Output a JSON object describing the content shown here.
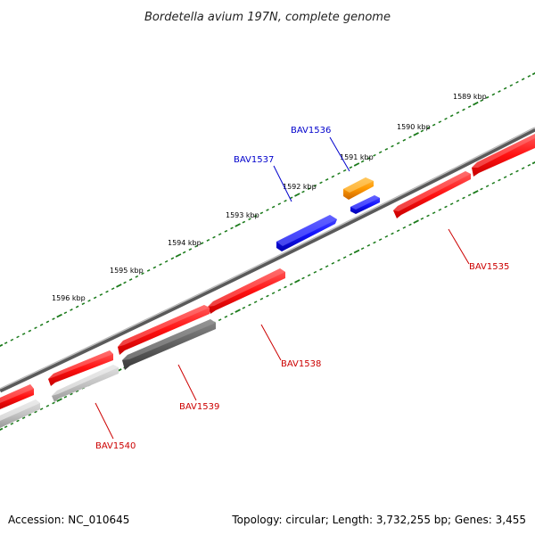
{
  "title": "Bordetella avium 197N, complete genome",
  "footer": {
    "accession": "Accession: NC_010645",
    "summary": "Topology: circular; Length: 3,732,255 bp; Genes: 3,455"
  },
  "ruler": {
    "labels": [
      "1589 kbp",
      "1590 kbp",
      "1591 kbp",
      "1592 kbp",
      "1593 kbp",
      "1594 kbp",
      "1595 kbp",
      "1596 kbp"
    ]
  },
  "genes": [
    {
      "id": "BAV1535",
      "strand": "minus",
      "color": "#ff1a1a"
    },
    {
      "id": "BAV1536",
      "strand": "plus",
      "color": "#1a1aff"
    },
    {
      "id": "BAV1537",
      "strand": "plus",
      "color": "#1a1aff"
    },
    {
      "id": "BAV1538",
      "strand": "minus",
      "color": "#ff1a1a"
    },
    {
      "id": "BAV1539",
      "strand": "minus",
      "color": "#ff1a1a"
    },
    {
      "id": "BAV1540",
      "strand": "minus",
      "color": "#ff1a1a"
    }
  ],
  "colors": {
    "forward_gene": "#1a1aff",
    "reverse_gene": "#ff1a1a",
    "orange_feature": "#ff9900",
    "backbone": "#808080",
    "tick": "#1a7a1a"
  }
}
